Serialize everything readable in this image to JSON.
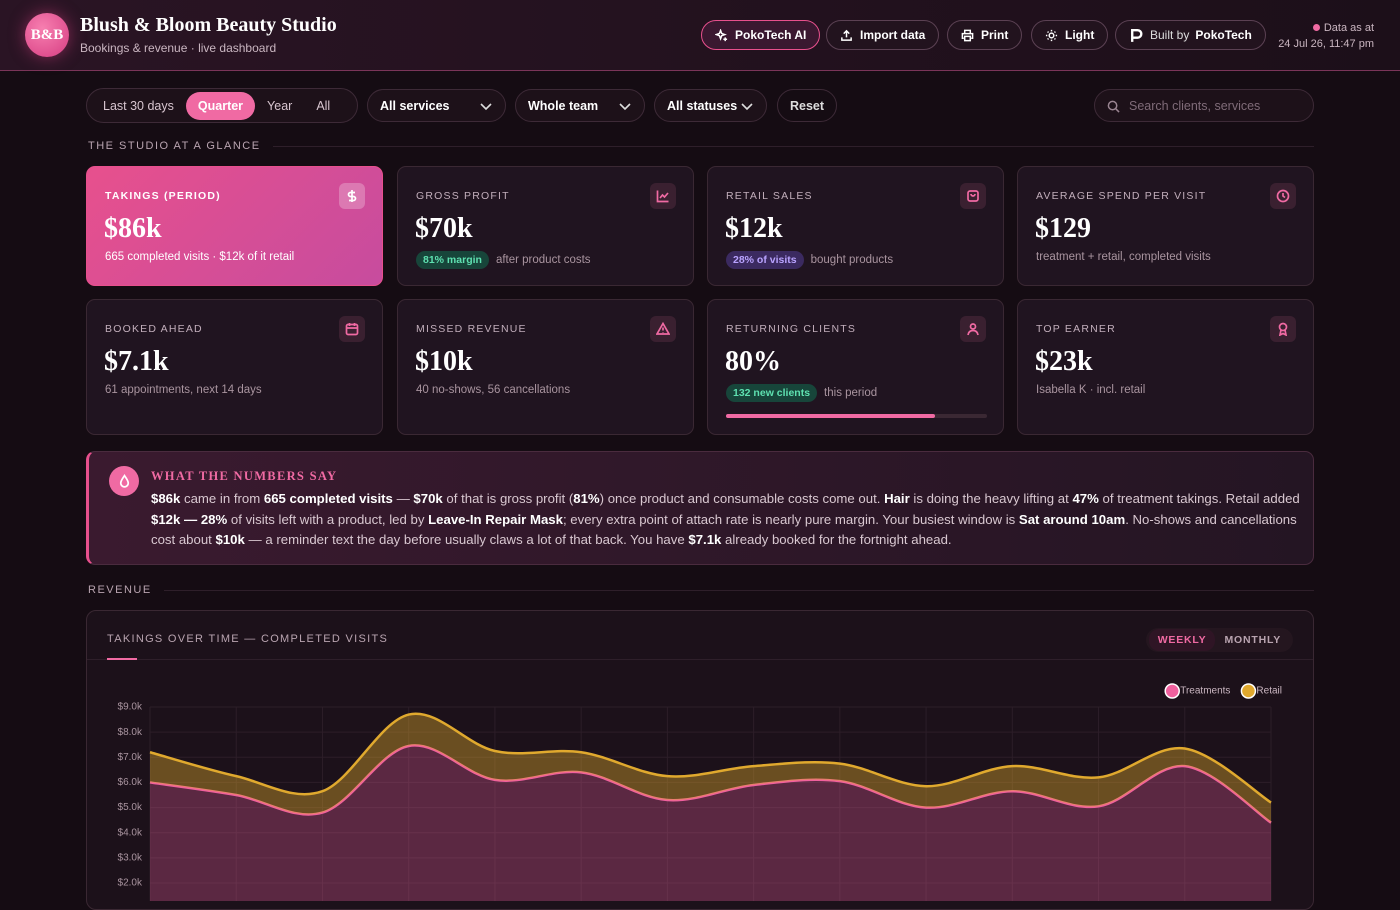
{
  "header": {
    "logo": "B&B",
    "title": "Blush & Bloom Beauty Studio",
    "subtitle": "Bookings & revenue · live dashboard",
    "buttons": [
      "PokoTech AI",
      "Import data",
      "Print",
      "Light"
    ],
    "built_by": {
      "prefix": "Built by",
      "name": "PokoTech"
    },
    "data_as_at": {
      "label": "Data as at",
      "time": "24 Jul 26, 11:47 pm"
    }
  },
  "filters": {
    "ranges": [
      "Last 30 days",
      "Quarter",
      "Year",
      "All"
    ],
    "active_range": 1,
    "dropdowns": [
      "All services",
      "Whole team",
      "All statuses"
    ],
    "reset": "Reset",
    "search_placeholder": "Search clients, services"
  },
  "glance": {
    "heading": "THE STUDIO AT A GLANCE",
    "cards": [
      {
        "label": "TAKINGS (PERIOD)",
        "value": "$86k",
        "note": "665 completed visits · $12k of it retail"
      },
      {
        "label": "GROSS PROFIT",
        "value": "$70k",
        "badge": "81% margin",
        "badge_tone": "green",
        "note": "after product costs"
      },
      {
        "label": "RETAIL SALES",
        "value": "$12k",
        "badge": "28% of visits",
        "badge_tone": "purple",
        "note": "bought products"
      },
      {
        "label": "AVERAGE SPEND PER VISIT",
        "value": "$129",
        "note": "treatment + retail, completed visits"
      },
      {
        "label": "BOOKED AHEAD",
        "value": "$7.1k",
        "note": "61 appointments, next 14 days"
      },
      {
        "label": "MISSED REVENUE",
        "value": "$10k",
        "note": "40 no-shows, 56 cancellations"
      },
      {
        "label": "RETURNING CLIENTS",
        "value": "80%",
        "badge": "132 new clients",
        "badge_tone": "green",
        "note": "this period",
        "progress": 80
      },
      {
        "label": "TOP EARNER",
        "value": "$23k",
        "note": "Isabella K · incl. retail"
      }
    ]
  },
  "insight": {
    "title": "WHAT THE NUMBERS SAY",
    "parts": [
      {
        "text": "$86k",
        "strong": true
      },
      {
        "text": " came in from "
      },
      {
        "text": "665 completed visits",
        "strong": true
      },
      {
        "text": " — "
      },
      {
        "text": "$70k",
        "strong": true
      },
      {
        "text": " of that is gross profit ("
      },
      {
        "text": "81%",
        "strong": true
      },
      {
        "text": ") once product and consumable costs come out. "
      },
      {
        "text": "Hair",
        "strong": true
      },
      {
        "text": " is doing the heavy lifting at "
      },
      {
        "text": "47%",
        "strong": true
      },
      {
        "text": " of treatment takings. Retail added "
      },
      {
        "text": "$12k — 28%",
        "strong": true
      },
      {
        "text": " of visits left with a product, led by "
      },
      {
        "text": "Leave-In Repair Mask",
        "strong": true
      },
      {
        "text": "; every extra point of attach rate is nearly pure margin. Your busiest window is "
      },
      {
        "text": "Sat around 10am",
        "strong": true
      },
      {
        "text": ". No-shows and cancellations cost about "
      },
      {
        "text": "$10k",
        "strong": true
      },
      {
        "text": " — a reminder text the day before usually claws a lot of that back. You have "
      },
      {
        "text": "$7.1k",
        "strong": true
      },
      {
        "text": " already booked for the fortnight ahead."
      }
    ]
  },
  "revenue": {
    "heading": "REVENUE",
    "tabs": [
      "WEEKLY",
      "MONTHLY"
    ],
    "active_tab": 0
  },
  "chart_data": {
    "type": "area",
    "stacked": true,
    "title": "TAKINGS OVER TIME — COMPLETED VISITS",
    "grid": true,
    "legend": "top-right",
    "ylim": [
      0,
      9000
    ],
    "yticks": [
      {
        "value": 2000,
        "label": "$2.0k"
      },
      {
        "value": 3000,
        "label": "$3.0k"
      },
      {
        "value": 4000,
        "label": "$4.0k"
      },
      {
        "value": 5000,
        "label": "$5.0k"
      },
      {
        "value": 6000,
        "label": "$6.0k"
      },
      {
        "value": 7000,
        "label": "$7.0k"
      },
      {
        "value": 8000,
        "label": "$8.0k"
      },
      {
        "value": 9000,
        "label": "$9.0k"
      }
    ],
    "series": [
      {
        "name": "Treatments",
        "color": "#f0609e",
        "values": [
          6000,
          5500,
          4800,
          7450,
          6100,
          6400,
          5300,
          5900,
          6050,
          5000,
          5650,
          5050,
          6650,
          4400
        ]
      },
      {
        "name": "Retail",
        "color": "#e0a92e",
        "values": [
          1200,
          750,
          850,
          1250,
          1150,
          800,
          950,
          750,
          700,
          850,
          1000,
          1150,
          700,
          800
        ]
      }
    ]
  }
}
